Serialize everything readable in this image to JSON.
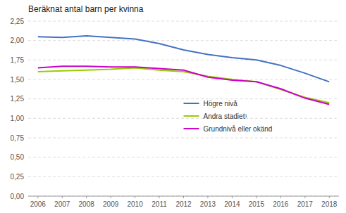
{
  "chart_data": {
    "type": "line",
    "title": "Beräknat antal barn per kvinna",
    "x": [
      2006,
      2007,
      2008,
      2009,
      2010,
      2011,
      2012,
      2013,
      2014,
      2015,
      2016,
      2017,
      2018
    ],
    "series": [
      {
        "name": "Högre nivå",
        "color": "#4472C4",
        "values": [
          2.05,
          2.04,
          2.06,
          2.04,
          2.02,
          1.96,
          1.88,
          1.82,
          1.78,
          1.75,
          1.68,
          1.58,
          1.47
        ]
      },
      {
        "name": "Andra stadiet¹",
        "color": "#99CC00",
        "values": [
          1.6,
          1.61,
          1.62,
          1.63,
          1.65,
          1.62,
          1.6,
          1.54,
          1.5,
          1.47,
          1.37,
          1.27,
          1.2
        ]
      },
      {
        "name": "Grundnivå eller okänd",
        "color": "#CC00CC",
        "values": [
          1.65,
          1.67,
          1.67,
          1.66,
          1.66,
          1.64,
          1.62,
          1.53,
          1.49,
          1.47,
          1.38,
          1.26,
          1.18
        ]
      }
    ],
    "xlim": [
      2005.6,
      2018.4
    ],
    "xticks": [
      2006,
      2007,
      2008,
      2009,
      2010,
      2011,
      2012,
      2013,
      2014,
      2015,
      2016,
      2017,
      2018
    ],
    "ylim": [
      0.0,
      2.25
    ],
    "yticks": [
      {
        "value": 0.0,
        "label": "0,00"
      },
      {
        "value": 0.25,
        "label": "0,25"
      },
      {
        "value": 0.5,
        "label": "0,50"
      },
      {
        "value": 0.75,
        "label": "0,75"
      },
      {
        "value": 1.0,
        "label": "1,00"
      },
      {
        "value": 1.25,
        "label": "1,25"
      },
      {
        "value": 1.5,
        "label": "1,50"
      },
      {
        "value": 1.75,
        "label": "1,75"
      },
      {
        "value": 2.0,
        "label": "2,00"
      },
      {
        "value": 2.25,
        "label": "2,25"
      }
    ],
    "grid": true,
    "legend": "center"
  }
}
